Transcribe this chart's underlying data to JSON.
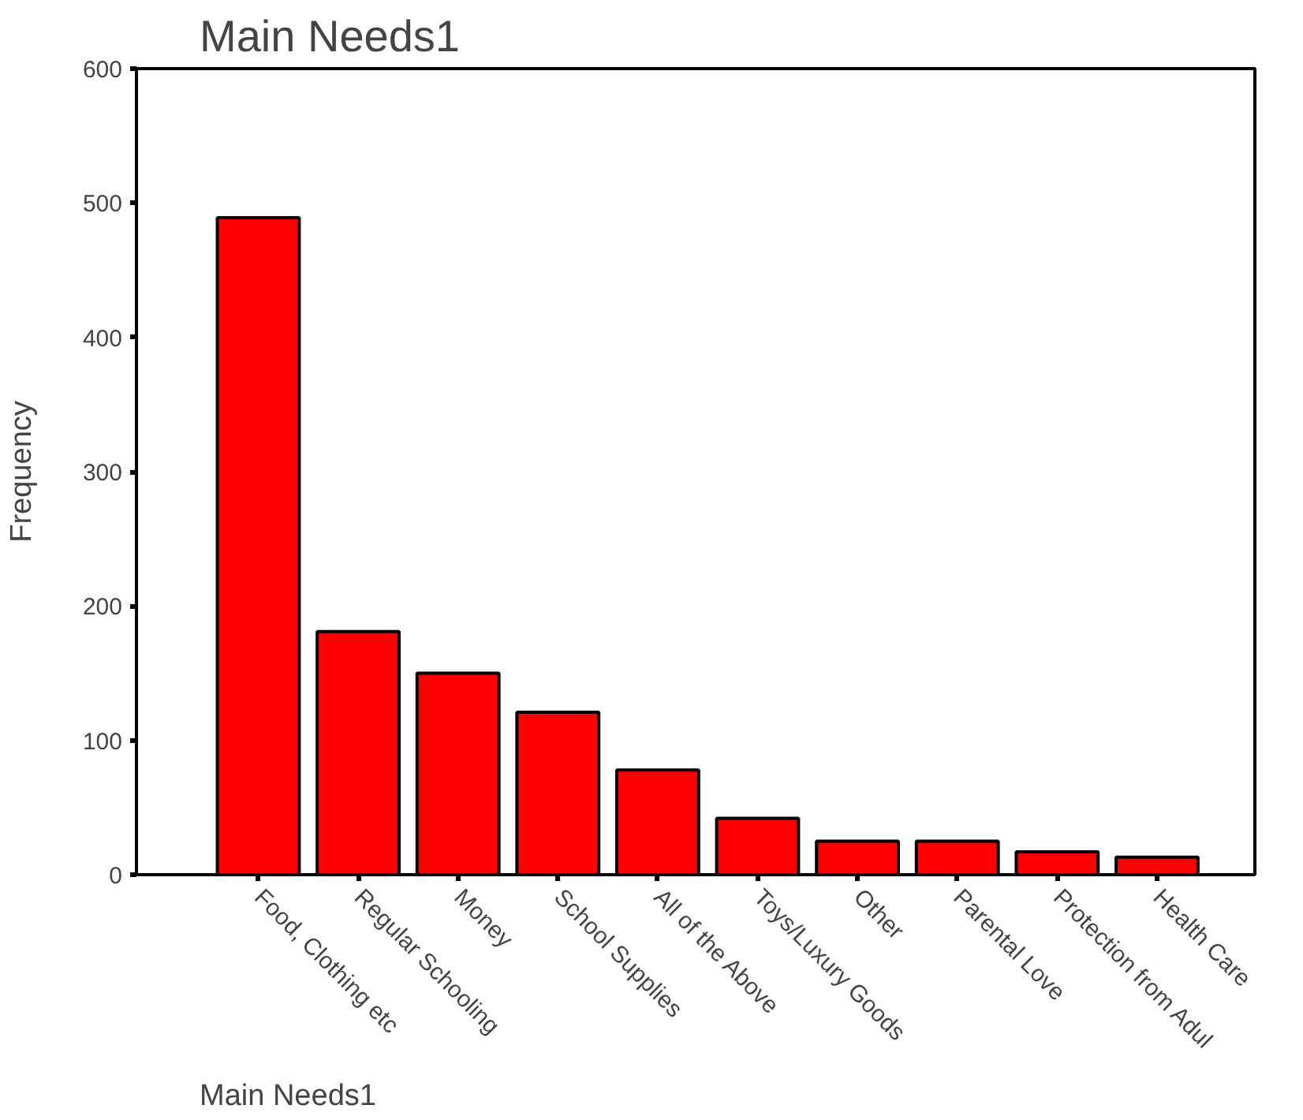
{
  "chart_data": {
    "type": "bar",
    "title": "Main Needs1",
    "xlabel": "Main Needs1",
    "ylabel": "Frequency",
    "categories": [
      "Food, Clothing etc",
      "Regular Schooling",
      "Money",
      "School Supplies",
      "All of the Above",
      "Toys/Luxury Goods",
      "Other",
      "Parental Love",
      "Protection from Adul",
      "Health Care"
    ],
    "values": [
      489,
      181,
      150,
      121,
      78,
      42,
      25,
      25,
      17,
      13
    ],
    "color": "#ff0000",
    "ylim": [
      0,
      600
    ],
    "yticks": [
      0,
      100,
      200,
      300,
      400,
      500,
      600
    ],
    "grid": false
  }
}
